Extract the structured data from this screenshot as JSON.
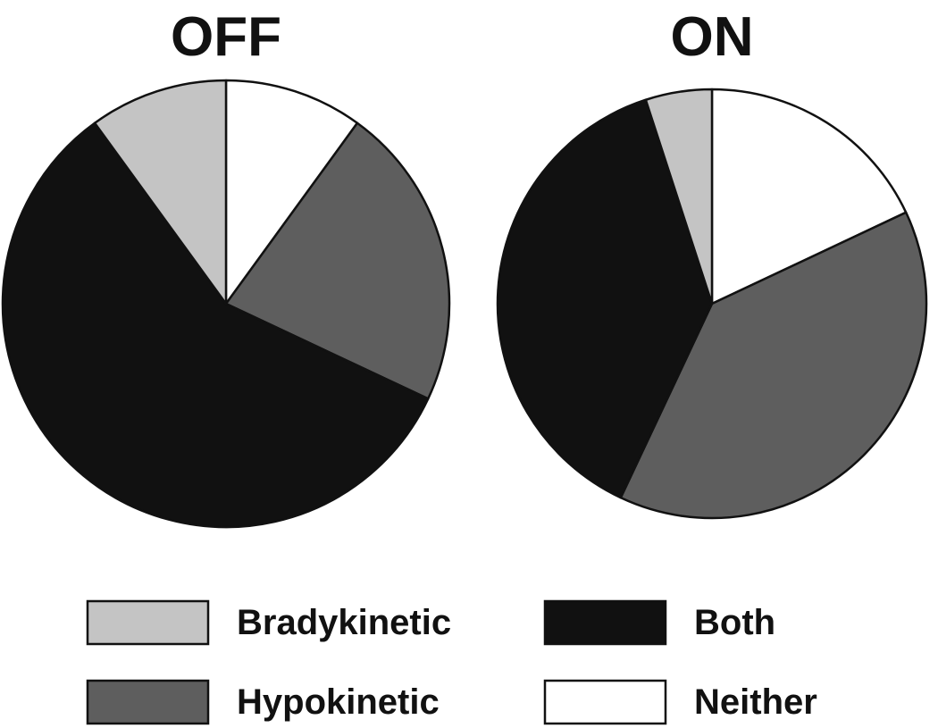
{
  "chart_data": [
    {
      "type": "pie",
      "title": "OFF",
      "slices": [
        {
          "name": "Neither",
          "value": 10
        },
        {
          "name": "Hypokinetic",
          "value": 22
        },
        {
          "name": "Both",
          "value": 58
        },
        {
          "name": "Bradykinetic",
          "value": 10
        }
      ]
    },
    {
      "type": "pie",
      "title": "ON",
      "slices": [
        {
          "name": "Neither",
          "value": 18
        },
        {
          "name": "Hypokinetic",
          "value": 39
        },
        {
          "name": "Both",
          "value": 38
        },
        {
          "name": "Bradykinetic",
          "value": 5
        }
      ]
    }
  ],
  "legend": [
    {
      "name": "Bradykinetic",
      "label": "Bradykinetic",
      "color": "#c4c4c4"
    },
    {
      "name": "Both",
      "label": "Both",
      "color": "#111111"
    },
    {
      "name": "Hypokinetic",
      "label": "Hypokinetic",
      "color": "#5e5e5e"
    },
    {
      "name": "Neither",
      "label": "Neither",
      "color": "#ffffff"
    }
  ],
  "colors": {
    "Bradykinetic": "#c4c4c4",
    "Hypokinetic": "#5e5e5e",
    "Both": "#111111",
    "Neither": "#ffffff",
    "outline": "#111111"
  }
}
